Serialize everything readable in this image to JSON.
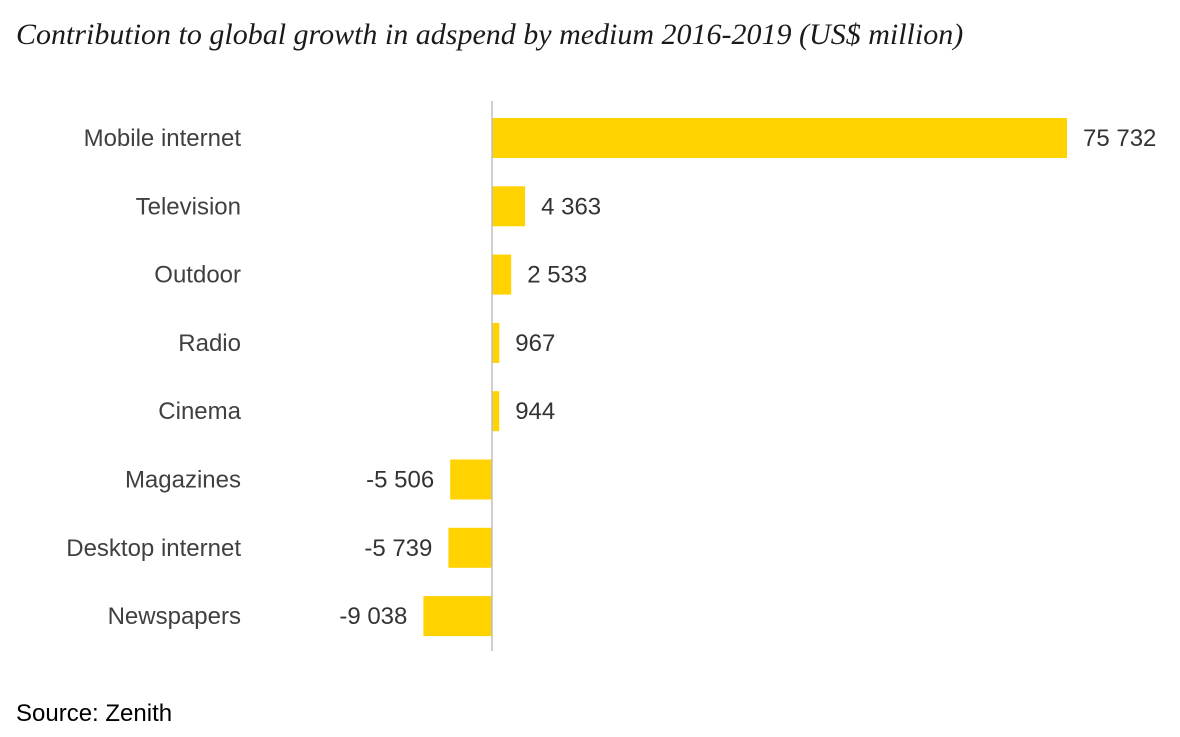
{
  "title": "Contribution to global growth in adspend by medium 2016-2019 (US$ million)",
  "source": "Source: Zenith",
  "colors": {
    "bar": "#FFD200",
    "axis": "#BFBFBF"
  },
  "chart_data": {
    "type": "bar",
    "orientation": "horizontal",
    "title": "Contribution to global growth in adspend by medium 2016-2019 (US$ million)",
    "categories": [
      "Mobile internet",
      "Television",
      "Outdoor",
      "Radio",
      "Cinema",
      "Magazines",
      "Desktop internet",
      "Newspapers"
    ],
    "values": [
      75732,
      4363,
      2533,
      967,
      944,
      -5506,
      -5739,
      -9038
    ],
    "value_labels": [
      "75 732",
      "4 363",
      "2 533",
      "967",
      "944",
      "-5 506",
      "-5 739",
      "-9 038"
    ],
    "xlabel": "",
    "ylabel": "",
    "grid": false,
    "legend": "none"
  }
}
